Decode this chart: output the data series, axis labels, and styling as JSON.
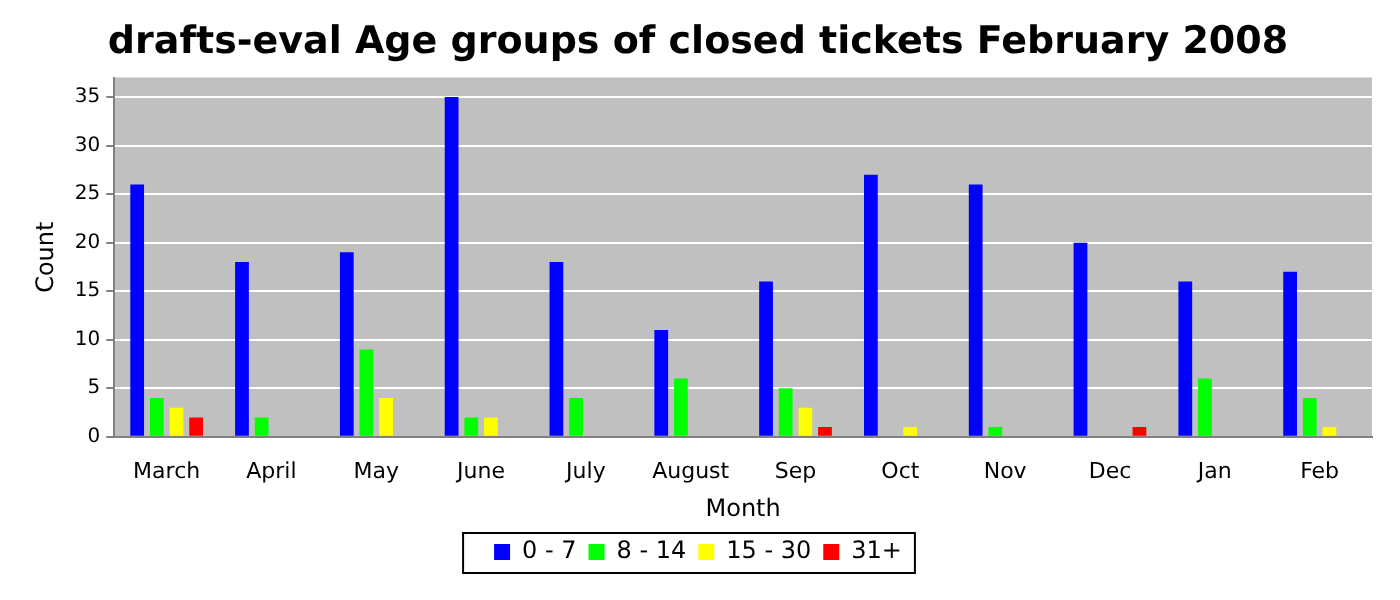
{
  "chart_data": {
    "type": "bar",
    "title": "drafts-eval Age groups of closed tickets February 2008",
    "xlabel": "Month",
    "ylabel": "Count",
    "categories": [
      "March",
      "April",
      "May",
      "June",
      "July",
      "August",
      "Sep",
      "Oct",
      "Nov",
      "Dec",
      "Jan",
      "Feb"
    ],
    "series": [
      {
        "name": "0 - 7",
        "color": "#0000ff",
        "values": [
          26,
          18,
          19,
          35,
          18,
          11,
          16,
          27,
          26,
          20,
          16,
          17
        ]
      },
      {
        "name": "8 - 14",
        "color": "#00ff00",
        "values": [
          4,
          2,
          9,
          2,
          4,
          6,
          5,
          0,
          1,
          0,
          6,
          4
        ]
      },
      {
        "name": "15 - 30",
        "color": "#ffff00",
        "values": [
          3,
          0,
          4,
          2,
          0,
          0,
          3,
          1,
          0,
          0,
          0,
          1
        ]
      },
      {
        "name": "31+",
        "color": "#ff0000",
        "values": [
          2,
          0,
          0,
          0,
          0,
          0,
          1,
          0,
          0,
          1,
          0,
          0
        ]
      }
    ],
    "ylim": [
      0,
      37
    ],
    "yticks": [
      0,
      5,
      10,
      15,
      20,
      25,
      30,
      35
    ],
    "grid": "y",
    "legend": "bottom"
  }
}
